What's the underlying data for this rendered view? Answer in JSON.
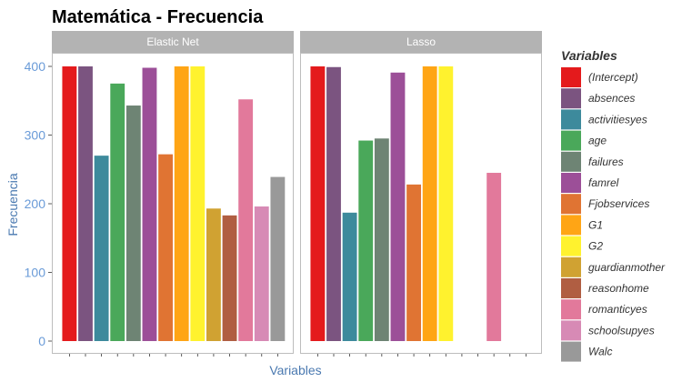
{
  "chart_data": {
    "type": "bar",
    "title": "Matemática - Frecuencia",
    "xlabel": "Variables",
    "ylabel": "Frecuencia",
    "ylim": [
      0,
      420
    ],
    "yticks": [
      0,
      100,
      200,
      300,
      400
    ],
    "legend_title": "Variables",
    "legend_position": "right",
    "categories": [
      "(Intercept)",
      "absences",
      "activitiesyes",
      "age",
      "failures",
      "famrel",
      "Fjobservices",
      "G1",
      "G2",
      "guardianmother",
      "reasonhome",
      "romanticyes",
      "schoolsupyes",
      "Walc"
    ],
    "colors": [
      "#e41a1c",
      "#7b5480",
      "#3d8a9c",
      "#4aa85a",
      "#6e8474",
      "#9c4f98",
      "#e07433",
      "#ffa515",
      "#fff22e",
      "#d0a232",
      "#b05e42",
      "#e2799b",
      "#d78ab5",
      "#999999"
    ],
    "panels": [
      {
        "name": "Elastic Net",
        "values": [
          400,
          400,
          270,
          375,
          343,
          398,
          272,
          400,
          400,
          193,
          183,
          352,
          196,
          239
        ]
      },
      {
        "name": "Lasso",
        "values": [
          400,
          399,
          187,
          292,
          295,
          391,
          228,
          400,
          400,
          null,
          null,
          245,
          null,
          null
        ]
      }
    ]
  }
}
